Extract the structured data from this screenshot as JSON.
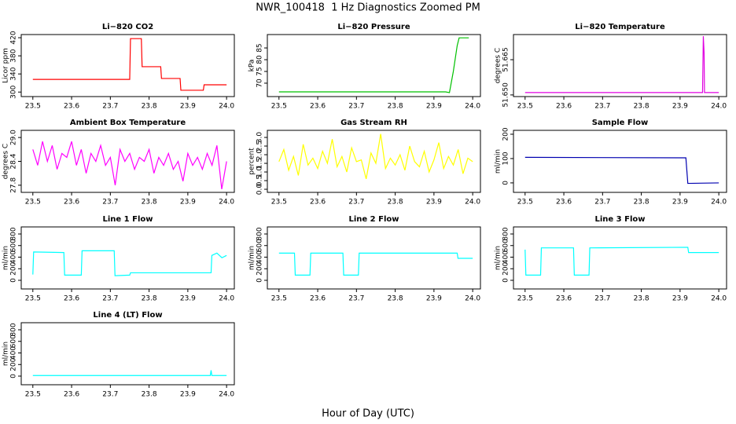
{
  "title": "NWR_100418  1 Hz Diagnostics Zoomed PM",
  "x_label": "Hour of Day (UTC)",
  "chart_data": [
    {
      "type": "line",
      "title": "Li−820 CO2",
      "y_label": "Licor ppm",
      "color": "#ff0000",
      "x": [
        23.5,
        23.75,
        23.752,
        23.78,
        23.782,
        23.83,
        23.832,
        23.88,
        23.882,
        23.94,
        23.942,
        24.0
      ],
      "values": [
        328,
        328,
        418,
        418,
        356,
        356,
        330,
        330,
        304,
        304,
        316,
        316
      ],
      "xlim": [
        23.47,
        24.02
      ],
      "xticks": [
        23.5,
        23.6,
        23.7,
        23.8,
        23.9,
        {
          "value": 24.0,
          "label": "24.0"
        }
      ],
      "ylim": [
        290,
        427
      ],
      "yticks": [
        300,
        340,
        380,
        420
      ]
    },
    {
      "type": "line",
      "title": "Li−820 Pressure",
      "y_label": "kPa",
      "color": "#00c000",
      "x": [
        23.5,
        23.93,
        23.94,
        23.95,
        23.96,
        23.965,
        23.99
      ],
      "values": [
        66.3,
        66.3,
        66,
        75,
        86,
        89.3,
        89.3
      ],
      "xlim": [
        23.47,
        24.02
      ],
      "xticks": [
        23.5,
        23.6,
        23.7,
        23.8,
        23.9,
        {
          "value": 24.0,
          "label": "24.0"
        }
      ],
      "ylim": [
        64.3,
        90.7
      ],
      "yticks": [
        70,
        75,
        80,
        85
      ]
    },
    {
      "type": "line",
      "title": "Li−820 Temperature",
      "y_label": "degrees C",
      "color": "#e000e0",
      "x": [
        23.5,
        23.958,
        23.96,
        23.962,
        23.963,
        24.0
      ],
      "values": [
        51.651,
        51.651,
        51.675,
        51.668,
        51.651,
        51.651
      ],
      "xlim": [
        23.47,
        24.02
      ],
      "xticks": [
        23.5,
        23.6,
        23.7,
        23.8,
        23.9,
        {
          "value": 24.0,
          "label": "24.0"
        }
      ],
      "ylim": [
        51.6493,
        51.6757
      ],
      "yticks": [
        {
          "value": 51.65,
          "label": "51.650"
        },
        51.665
      ]
    },
    {
      "type": "line",
      "title": "Ambient Box Temperature",
      "y_label": "degrees C",
      "color": "#ff00ff",
      "x": [
        23.5,
        23.5125,
        23.525,
        23.5375,
        23.55,
        23.5625,
        23.575,
        23.5875,
        23.6,
        23.6125,
        23.625,
        23.6375,
        23.65,
        23.6625,
        23.675,
        23.6875,
        23.7,
        23.7125,
        23.725,
        23.7375,
        23.75,
        23.7625,
        23.775,
        23.7875,
        23.8,
        23.8125,
        23.825,
        23.8375,
        23.85,
        23.8625,
        23.875,
        23.8875,
        23.9,
        23.9125,
        23.925,
        23.9375,
        23.95,
        23.9625,
        23.975,
        23.9875,
        24.0
      ],
      "values": [
        28.7,
        28.3,
        28.9,
        28.4,
        28.8,
        28.2,
        28.6,
        28.5,
        28.9,
        28.3,
        28.7,
        28.1,
        28.6,
        28.4,
        28.8,
        28.3,
        28.5,
        27.8,
        28.7,
        28.4,
        28.6,
        28.2,
        28.5,
        28.4,
        28.7,
        28.1,
        28.5,
        28.3,
        28.6,
        28.2,
        28.4,
        27.9,
        28.6,
        28.3,
        28.5,
        28.2,
        28.6,
        28.3,
        28.8,
        27.7,
        28.4
      ],
      "xlim": [
        23.47,
        24.02
      ],
      "xticks": [
        23.5,
        23.6,
        23.7,
        23.8,
        23.9,
        {
          "value": 24.0,
          "label": "24.0"
        }
      ],
      "ylim": [
        27.62,
        29.18
      ],
      "yticks": [
        27.8,
        28.4,
        {
          "value": 29.0,
          "label": "29.0"
        }
      ]
    },
    {
      "type": "line",
      "title": "Gas Stream RH",
      "y_label": "percent",
      "color": "#ffff00",
      "x": [
        23.5,
        23.5125,
        23.525,
        23.5375,
        23.55,
        23.5625,
        23.575,
        23.5875,
        23.6,
        23.6125,
        23.625,
        23.6375,
        23.65,
        23.6625,
        23.675,
        23.6875,
        23.7,
        23.7125,
        23.725,
        23.7375,
        23.75,
        23.7625,
        23.775,
        23.7875,
        23.8,
        23.8125,
        23.825,
        23.8375,
        23.85,
        23.8625,
        23.875,
        23.8875,
        23.9,
        23.9125,
        23.925,
        23.9375,
        23.95,
        23.9625,
        23.975,
        23.9875,
        24.0
      ],
      "values": [
        1.6,
        2.3,
        1.1,
        1.9,
        0.8,
        2.6,
        1.4,
        1.8,
        1.2,
        2.2,
        1.5,
        2.9,
        1.3,
        1.9,
        1.0,
        2.4,
        1.6,
        1.7,
        0.6,
        2.1,
        1.5,
        3.2,
        1.2,
        1.8,
        1.4,
        2.0,
        1.1,
        2.5,
        1.6,
        1.3,
        2.2,
        1.0,
        1.7,
        2.7,
        1.2,
        1.9,
        1.4,
        2.3,
        0.9,
        1.8,
        1.6
      ],
      "xlim": [
        23.47,
        24.02
      ],
      "xticks": [
        23.5,
        23.6,
        23.7,
        23.8,
        23.9,
        {
          "value": 24.0,
          "label": "24.0"
        }
      ],
      "ylim": [
        -0.18,
        3.41
      ],
      "yticks": [
        {
          "value": 0,
          "label": "0.0"
        },
        0.5,
        {
          "value": 1,
          "label": "1.0"
        },
        1.5,
        {
          "value": 2,
          "label": "2.0"
        },
        2.5,
        {
          "value": 3,
          "label": "3.0"
        }
      ]
    },
    {
      "type": "line",
      "title": "Sample Flow",
      "y_label": "ml/min",
      "color": "#0000b0",
      "x": [
        23.5,
        23.915,
        23.92,
        24.0
      ],
      "values": [
        105,
        103,
        -2,
        0
      ],
      "xlim": [
        23.47,
        24.02
      ],
      "xticks": [
        23.5,
        23.6,
        23.7,
        23.8,
        23.9,
        {
          "value": 24.0,
          "label": "24.0"
        }
      ],
      "ylim": [
        -39,
        216
      ],
      "yticks": [
        0,
        100,
        200
      ]
    },
    {
      "type": "line",
      "title": "Line 1 Flow",
      "y_label": "ml/min",
      "color": "#00ffff",
      "x": [
        23.5,
        23.502,
        23.58,
        23.582,
        23.625,
        23.627,
        23.71,
        23.712,
        23.75,
        23.752,
        23.96,
        23.962,
        23.975,
        23.988,
        24.0
      ],
      "values": [
        100,
        490,
        480,
        90,
        90,
        510,
        510,
        80,
        90,
        130,
        130,
        430,
        470,
        390,
        430
      ],
      "xlim": [
        23.47,
        24.02
      ],
      "xticks": [
        23.5,
        23.6,
        23.7,
        23.8,
        23.9,
        {
          "value": 24.0,
          "label": "24.0"
        }
      ],
      "ylim": [
        -149,
        922
      ],
      "yticks": [
        0,
        200,
        400,
        600,
        800
      ]
    },
    {
      "type": "line",
      "title": "Line 2 Flow",
      "y_label": "ml/min",
      "color": "#00ffff",
      "x": [
        23.5,
        23.54,
        23.542,
        23.58,
        23.582,
        23.665,
        23.667,
        23.705,
        23.707,
        23.96,
        23.962,
        24.0
      ],
      "values": [
        470,
        470,
        90,
        90,
        470,
        470,
        90,
        90,
        470,
        470,
        380,
        380
      ],
      "xlim": [
        23.47,
        24.02
      ],
      "xticks": [
        23.5,
        23.6,
        23.7,
        23.8,
        23.9,
        {
          "value": 24.0,
          "label": "24.0"
        }
      ],
      "ylim": [
        -149,
        922
      ],
      "yticks": [
        0,
        200,
        400,
        600,
        800
      ]
    },
    {
      "type": "line",
      "title": "Line 3 Flow",
      "y_label": "ml/min",
      "color": "#00ffff",
      "x": [
        23.5,
        23.502,
        23.54,
        23.542,
        23.625,
        23.627,
        23.665,
        23.667,
        23.92,
        23.922,
        24.0
      ],
      "values": [
        530,
        90,
        90,
        560,
        560,
        90,
        90,
        560,
        570,
        480,
        480
      ],
      "xlim": [
        23.47,
        24.02
      ],
      "xticks": [
        23.5,
        23.6,
        23.7,
        23.8,
        23.9,
        {
          "value": 24.0,
          "label": "24.0"
        }
      ],
      "ylim": [
        -149,
        922
      ],
      "yticks": [
        0,
        200,
        400,
        600,
        800
      ]
    },
    {
      "type": "line",
      "title": "Line 4 (LT) Flow",
      "y_label": "ml/min",
      "color": "#00ffff",
      "x": [
        23.5,
        23.958,
        23.96,
        23.962,
        24.0
      ],
      "values": [
        10,
        10,
        100,
        10,
        10
      ],
      "xlim": [
        23.47,
        24.02
      ],
      "xticks": [
        23.5,
        23.6,
        23.7,
        23.8,
        23.9,
        {
          "value": 24.0,
          "label": "24.0"
        }
      ],
      "ylim": [
        -149,
        922
      ],
      "yticks": [
        0,
        200,
        400,
        600,
        800
      ]
    }
  ]
}
